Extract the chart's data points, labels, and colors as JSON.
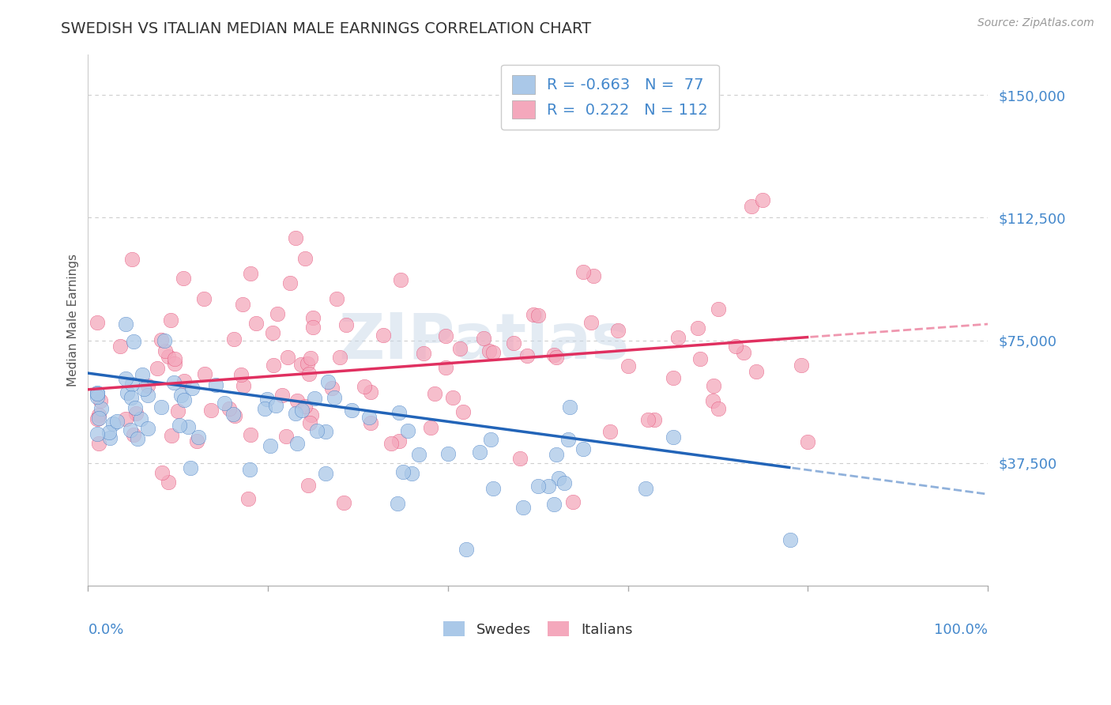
{
  "title": "SWEDISH VS ITALIAN MEDIAN MALE EARNINGS CORRELATION CHART",
  "source": "Source: ZipAtlas.com",
  "ylabel": "Median Male Earnings",
  "ytick_labels": [
    "$37,500",
    "$75,000",
    "$112,500",
    "$150,000"
  ],
  "ytick_values": [
    37500,
    75000,
    112500,
    150000
  ],
  "ylim": [
    0,
    162500
  ],
  "xlim": [
    0.0,
    1.0
  ],
  "R_swedes": -0.663,
  "N_swedes": 77,
  "R_italians": 0.222,
  "N_italians": 112,
  "swedes_color": "#aac8e8",
  "italians_color": "#f4a8bc",
  "swedes_line_color": "#2264b8",
  "italians_line_color": "#e03060",
  "background_color": "#ffffff",
  "grid_color": "#c8c8c8",
  "title_color": "#333333",
  "axis_label_color": "#4488cc",
  "watermark_color": "#c8d8e8",
  "legend_text_color": "#333333",
  "legend_value_color": "#2264b8",
  "sw_line_y0": 65000,
  "sw_line_y1": 28000,
  "it_line_y0": 60000,
  "it_line_y1": 80000
}
